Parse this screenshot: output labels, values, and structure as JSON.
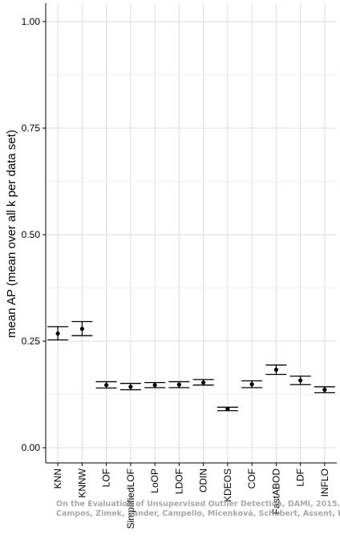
{
  "chart_data": {
    "type": "scatter",
    "subtype": "point-with-errorbars",
    "ylabel": "mean AP (mean over all k per data set)",
    "ylim": [
      0,
      1.05
    ],
    "yticks": [
      "0.00",
      "0.25",
      "0.50",
      "0.75",
      "1.00"
    ],
    "ytick_values": [
      0,
      0.25,
      0.5,
      0.75,
      1.0
    ],
    "grid": true,
    "categories": [
      "KNN",
      "KNNW",
      "LOF",
      "SimplifiedLOF",
      "LoOP",
      "LDOF",
      "ODIN",
      "KDEOS",
      "COF",
      "FastABOD",
      "LDF",
      "INFLO"
    ],
    "values": [
      0.268,
      0.279,
      0.147,
      0.143,
      0.147,
      0.148,
      0.153,
      0.091,
      0.149,
      0.183,
      0.158,
      0.136
    ],
    "error_low": [
      0.253,
      0.263,
      0.14,
      0.136,
      0.141,
      0.141,
      0.147,
      0.087,
      0.141,
      0.172,
      0.148,
      0.129
    ],
    "error_high": [
      0.284,
      0.296,
      0.155,
      0.151,
      0.153,
      0.155,
      0.16,
      0.095,
      0.157,
      0.194,
      0.168,
      0.143
    ],
    "marker_color": "#000000",
    "grid_color": "#dcdcdc"
  },
  "watermark": {
    "line1": "On the Evaluation of Unsupervised Outlier Detection, DAMI, 2015.",
    "line2": "Campos, Zimek, Sander, Campello, Micenková, Schubert, Assent, Houle"
  }
}
